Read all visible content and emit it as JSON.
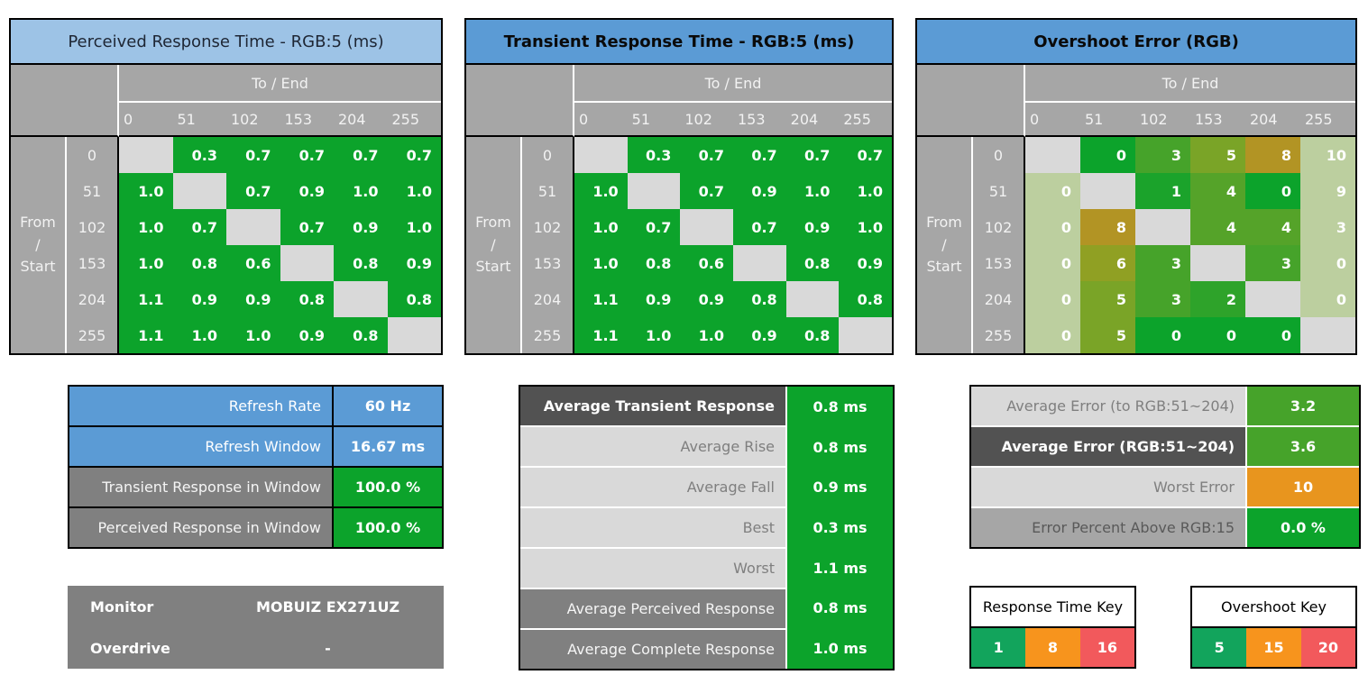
{
  "palette": {
    "green": "#0CA32B",
    "green1": "#1BA32B",
    "green2": "#2EA32A",
    "green3": "#46A32A",
    "green4": "#55A329",
    "green5": "#7AA427",
    "green6": "#90A023",
    "green8": "#B29424",
    "sage": "#BCCF9F",
    "diag": "#D9D9D9",
    "keyGreen": "#12A45C",
    "keyOrange": "#F7941D",
    "keyRed": "#F2595C",
    "worstOrange": "#E8951E",
    "blue": "#5B9BD5",
    "lightBlue": "#9DC3E6",
    "headerGray": "#A6A6A6",
    "darkGray": "#525252",
    "midGray": "#808080"
  },
  "chart_data": [
    {
      "type": "heatmap",
      "title": "Perceived Response Time - RGB:5 (ms)",
      "header_style": "light",
      "x_axis_label": "To / End",
      "y_axis_label": "From / Start",
      "x_ticks": [
        "0",
        "51",
        "102",
        "153",
        "204",
        "255"
      ],
      "y_ticks": [
        "0",
        "51",
        "102",
        "153",
        "204",
        "255"
      ],
      "format": "1dp",
      "cell_color": "green",
      "values": [
        [
          null,
          0.3,
          0.7,
          0.7,
          0.7,
          0.7
        ],
        [
          1.0,
          null,
          0.7,
          0.9,
          1.0,
          1.0
        ],
        [
          1.0,
          0.7,
          null,
          0.7,
          0.9,
          1.0
        ],
        [
          1.0,
          0.8,
          0.6,
          null,
          0.8,
          0.9
        ],
        [
          1.1,
          0.9,
          0.9,
          0.8,
          null,
          0.8
        ],
        [
          1.1,
          1.0,
          1.0,
          0.9,
          0.8,
          null
        ]
      ]
    },
    {
      "type": "heatmap",
      "title": "Transient Response Time - RGB:5 (ms)",
      "header_style": "accent",
      "x_axis_label": "To / End",
      "y_axis_label": "From / Start",
      "x_ticks": [
        "0",
        "51",
        "102",
        "153",
        "204",
        "255"
      ],
      "y_ticks": [
        "0",
        "51",
        "102",
        "153",
        "204",
        "255"
      ],
      "format": "1dp",
      "cell_color": "green",
      "values": [
        [
          null,
          0.3,
          0.7,
          0.7,
          0.7,
          0.7
        ],
        [
          1.0,
          null,
          0.7,
          0.9,
          1.0,
          1.0
        ],
        [
          1.0,
          0.7,
          null,
          0.7,
          0.9,
          1.0
        ],
        [
          1.0,
          0.8,
          0.6,
          null,
          0.8,
          0.9
        ],
        [
          1.1,
          0.9,
          0.9,
          0.8,
          null,
          0.8
        ],
        [
          1.1,
          1.0,
          1.0,
          0.9,
          0.8,
          null
        ]
      ]
    },
    {
      "type": "heatmap",
      "title": "Overshoot Error (RGB)",
      "header_style": "accent",
      "x_axis_label": "To / End",
      "y_axis_label": "From / Start",
      "x_ticks": [
        "0",
        "51",
        "102",
        "153",
        "204",
        "255"
      ],
      "y_ticks": [
        "0",
        "51",
        "102",
        "153",
        "204",
        "255"
      ],
      "format": "int",
      "values": [
        [
          null,
          0,
          3,
          5,
          8,
          10
        ],
        [
          0,
          null,
          1,
          4,
          0,
          9
        ],
        [
          0,
          8,
          null,
          4,
          4,
          3
        ],
        [
          0,
          6,
          3,
          null,
          3,
          0
        ],
        [
          0,
          5,
          3,
          2,
          null,
          0
        ],
        [
          0,
          5,
          0,
          0,
          0,
          null
        ]
      ],
      "cell_colors": [
        [
          null,
          "green",
          "green3",
          "green5",
          "green8",
          "sage"
        ],
        [
          "sage",
          null,
          "green1",
          "green4",
          "green",
          "sage"
        ],
        [
          "sage",
          "green8",
          null,
          "green4",
          "green4",
          "sage"
        ],
        [
          "sage",
          "green6",
          "green3",
          null,
          "green3",
          "sage"
        ],
        [
          "sage",
          "green5",
          "green3",
          "green2",
          null,
          "sage"
        ],
        [
          "sage",
          "green5",
          "green",
          "green",
          "green",
          null
        ]
      ]
    }
  ],
  "window_table": {
    "rows": [
      {
        "label": "Refresh Rate",
        "value": "60 Hz",
        "style": "blue",
        "value_bg": "blue"
      },
      {
        "label": "Refresh Window",
        "value": "16.67 ms",
        "style": "blue",
        "value_bg": "blue"
      },
      {
        "label": "Transient Response in Window",
        "value": "100.0 %",
        "style": "gray",
        "value_bg": "green"
      },
      {
        "label": "Perceived Response in Window",
        "value": "100.0 %",
        "style": "gray",
        "value_bg": "green"
      }
    ]
  },
  "monitor_table": {
    "rows": [
      {
        "label": "Monitor",
        "value": "MOBUIZ EX271UZ"
      },
      {
        "label": "Overdrive",
        "value": "-"
      }
    ]
  },
  "response_summary": {
    "value_bg": "green",
    "rows": [
      {
        "label": "Average Transient Response",
        "value": "0.8 ms",
        "style": "dark"
      },
      {
        "label": "Average Rise",
        "value": "0.8 ms",
        "style": "light"
      },
      {
        "label": "Average Fall",
        "value": "0.9 ms",
        "style": "light"
      },
      {
        "label": "Best",
        "value": "0.3 ms",
        "style": "light"
      },
      {
        "label": "Worst",
        "value": "1.1 ms",
        "style": "light"
      },
      {
        "label": "Average Perceived Response",
        "value": "0.8 ms",
        "style": "gray"
      },
      {
        "label": "Average Complete Response",
        "value": "1.0 ms",
        "style": "gray"
      }
    ]
  },
  "error_summary": {
    "rows": [
      {
        "label": "Average Error (to RGB:51~204)",
        "value": "3.2",
        "style": "light",
        "value_bg": "green3"
      },
      {
        "label": "Average Error (RGB:51~204)",
        "value": "3.6",
        "style": "dark",
        "value_bg": "green3"
      },
      {
        "label": "Worst Error",
        "value": "10",
        "style": "light",
        "value_bg": "worstOrange"
      },
      {
        "label": "Error Percent Above RGB:15",
        "value": "0.0 %",
        "style": "grayA6",
        "value_bg": "green"
      }
    ]
  },
  "keys": [
    {
      "title": "Response Time Key",
      "cells": [
        {
          "value": "1",
          "bg": "keyGreen"
        },
        {
          "value": "8",
          "bg": "keyOrange"
        },
        {
          "value": "16",
          "bg": "keyRed"
        }
      ]
    },
    {
      "title": "Overshoot Key",
      "cells": [
        {
          "value": "5",
          "bg": "keyGreen"
        },
        {
          "value": "15",
          "bg": "keyOrange"
        },
        {
          "value": "20",
          "bg": "keyRed"
        }
      ]
    }
  ]
}
